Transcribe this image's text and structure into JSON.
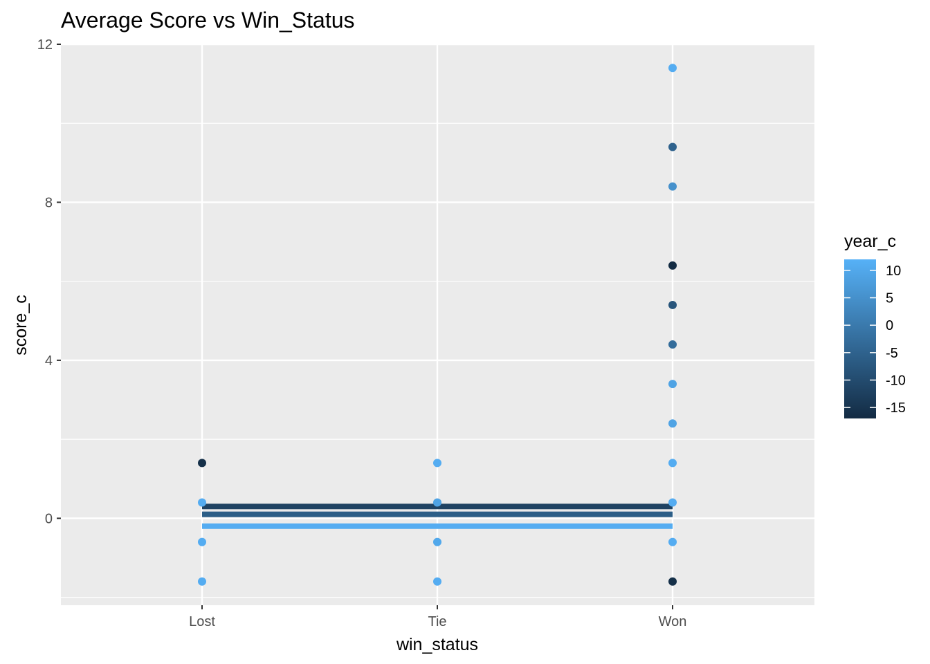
{
  "chart_data": {
    "type": "scatter",
    "title": "Average Score vs Win_Status",
    "xlabel": "win_status",
    "ylabel": "score_c",
    "categories": [
      "Lost",
      "Tie",
      "Won"
    ],
    "ylim": [
      -2.2,
      12.0
    ],
    "yticks": [
      0,
      4,
      8,
      12
    ],
    "grid": true,
    "color_scale": {
      "name": "year_c",
      "min": -17,
      "max": 12,
      "low_color": "#132B43",
      "high_color": "#56B1F7",
      "ticks": [
        10,
        5,
        0,
        -5,
        -10,
        -15
      ]
    },
    "points": [
      {
        "x": "Lost",
        "y": 1.4,
        "color_value": -16
      },
      {
        "x": "Lost",
        "y": 0.4,
        "color_value": 11
      },
      {
        "x": "Lost",
        "y": -0.6,
        "color_value": 11
      },
      {
        "x": "Lost",
        "y": -1.6,
        "color_value": 11
      },
      {
        "x": "Tie",
        "y": 1.4,
        "color_value": 11
      },
      {
        "x": "Tie",
        "y": 0.4,
        "color_value": 9
      },
      {
        "x": "Tie",
        "y": -0.6,
        "color_value": 10
      },
      {
        "x": "Tie",
        "y": -1.6,
        "color_value": 11
      },
      {
        "x": "Won",
        "y": 11.4,
        "color_value": 11
      },
      {
        "x": "Won",
        "y": 9.4,
        "color_value": -5
      },
      {
        "x": "Won",
        "y": 8.4,
        "color_value": 5
      },
      {
        "x": "Won",
        "y": 6.4,
        "color_value": -17
      },
      {
        "x": "Won",
        "y": 5.4,
        "color_value": -8
      },
      {
        "x": "Won",
        "y": 4.4,
        "color_value": -3
      },
      {
        "x": "Won",
        "y": 3.4,
        "color_value": 9
      },
      {
        "x": "Won",
        "y": 2.4,
        "color_value": 9
      },
      {
        "x": "Won",
        "y": 1.4,
        "color_value": 11
      },
      {
        "x": "Won",
        "y": 0.4,
        "color_value": 11
      },
      {
        "x": "Won",
        "y": -0.6,
        "color_value": 11
      },
      {
        "x": "Won",
        "y": -1.6,
        "color_value": -16
      }
    ],
    "lines": [
      {
        "x_from": "Lost",
        "x_to": "Won",
        "y": 0.3,
        "color_value": -12
      },
      {
        "x_from": "Lost",
        "x_to": "Won",
        "y": 0.1,
        "color_value": -6
      },
      {
        "x_from": "Lost",
        "x_to": "Won",
        "y": -0.2,
        "color_value": 11
      }
    ]
  }
}
